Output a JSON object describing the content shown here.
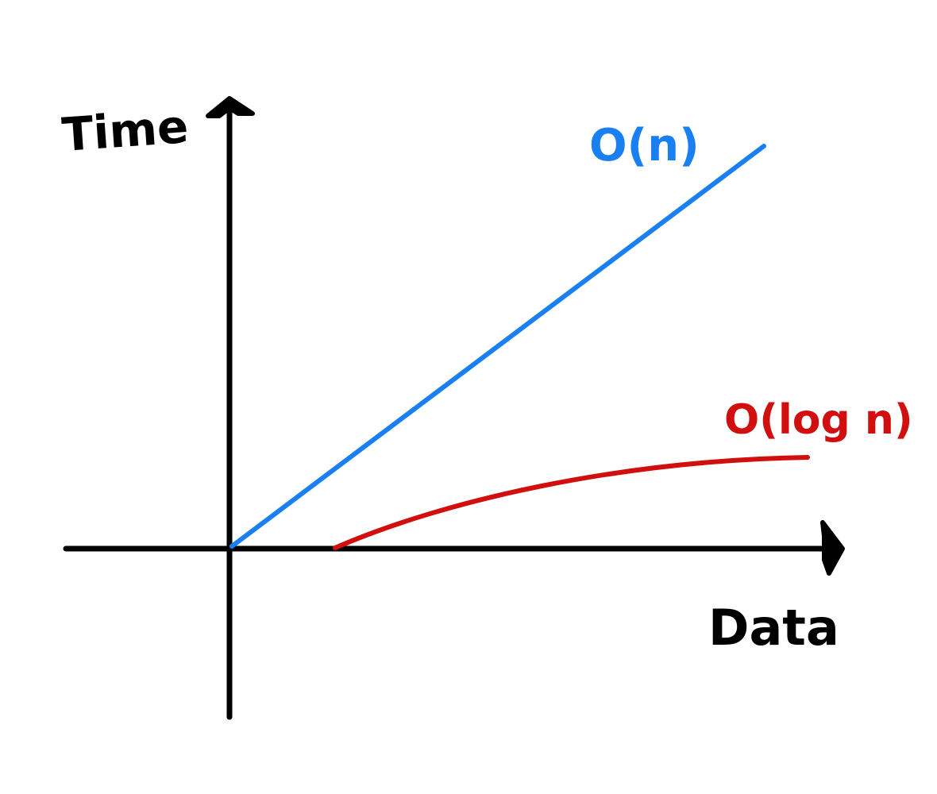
{
  "axes": {
    "y_label": "Time",
    "x_label": "Data"
  },
  "series": [
    {
      "label": "O(n)",
      "color": "#1a7ff0",
      "shape": "linear"
    },
    {
      "label": "O(log n)",
      "color": "#d10f0f",
      "shape": "logarithmic"
    }
  ],
  "axis_color": "#000000"
}
